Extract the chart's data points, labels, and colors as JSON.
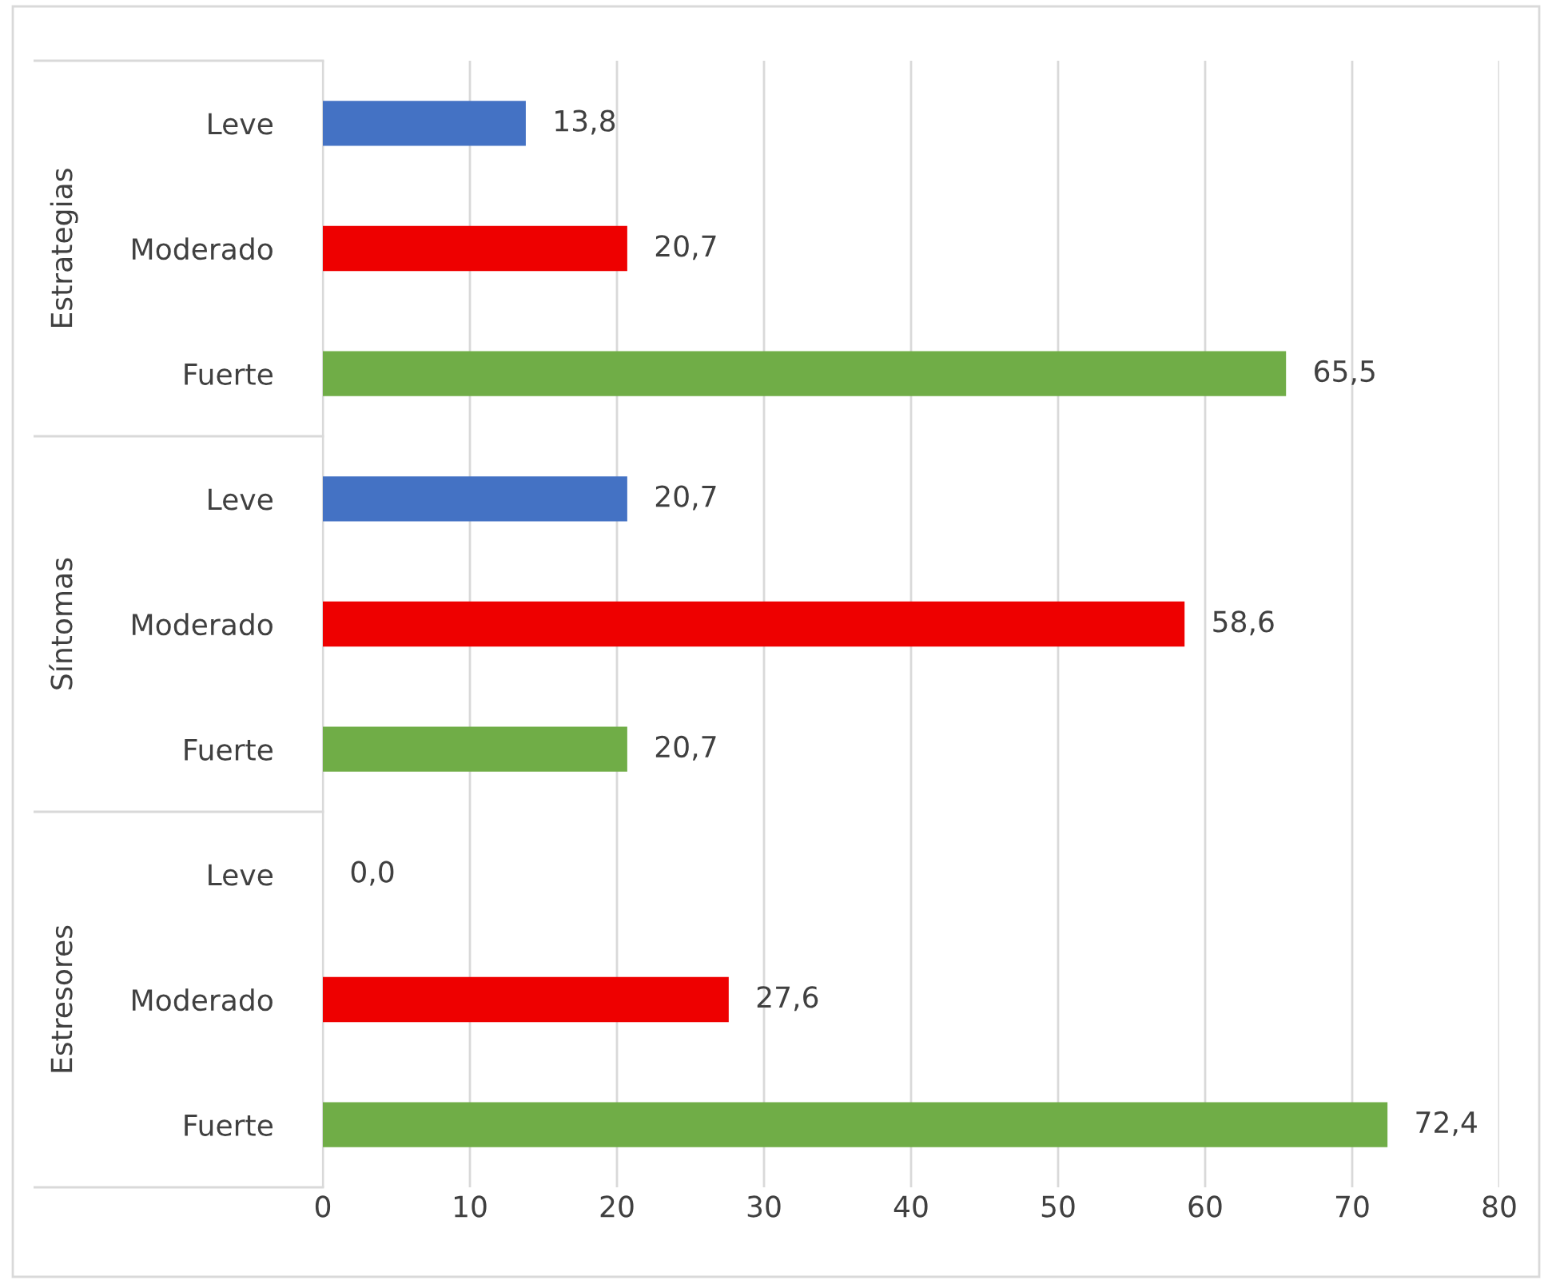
{
  "chart_data": {
    "type": "bar",
    "orientation": "horizontal",
    "categories": [
      "Leve",
      "Moderado",
      "Fuerte",
      "Leve",
      "Moderado",
      "Fuerte",
      "Leve",
      "Moderado",
      "Fuerte"
    ],
    "values": [
      13.8,
      20.7,
      65.5,
      20.7,
      58.6,
      20.7,
      0.0,
      27.6,
      72.4
    ],
    "colors": [
      "#4472c4",
      "#ee0000",
      "#70ad47",
      "#4472c4",
      "#ee0000",
      "#70ad47",
      "#4472c4",
      "#ee0000",
      "#70ad47"
    ],
    "value_labels": [
      "13,8",
      "20,7",
      "65,5",
      "20,7",
      "58,6",
      "20,7",
      "0,0",
      "27,6",
      "72,4"
    ],
    "annotations": [
      "Estrategias",
      "Síntomas",
      "Estresores"
    ],
    "xlim": [
      0,
      80
    ],
    "xticks": [
      0,
      10,
      20,
      30,
      40,
      50,
      60,
      70,
      80
    ],
    "grid": "x"
  }
}
